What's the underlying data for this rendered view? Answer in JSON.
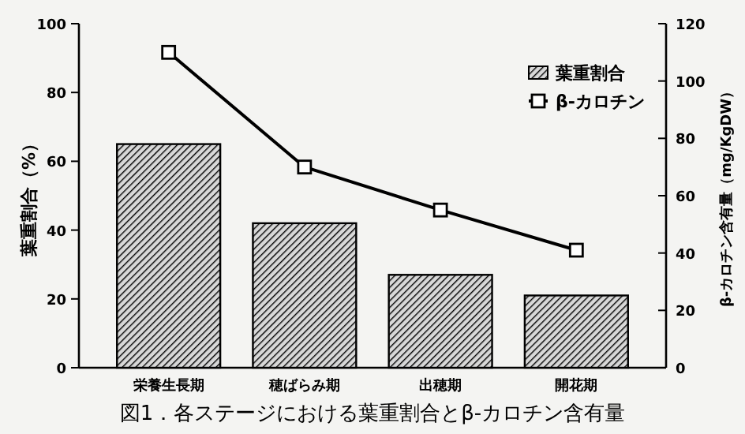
{
  "chart_data": {
    "type": "bar",
    "title": "図1．各ステージにおける葉重割合とβ-カロチン含有量",
    "ylabel": "葉重割合（%）",
    "y2label": "β-カロチン含有量（mg/KgDW）",
    "categories": [
      "栄養生長期",
      "穂ばらみ期",
      "出穂期",
      "開花期"
    ],
    "series": [
      {
        "name": "葉重割合",
        "color": "#000000",
        "values": [
          65,
          42,
          27,
          21
        ]
      },
      {
        "name": "β-カロチン",
        "type": "line",
        "axis": "y2",
        "color": "#000000",
        "marker": "square",
        "values": [
          110,
          70,
          55,
          41
        ]
      }
    ],
    "ylim": [
      0,
      100
    ],
    "yticks": [
      0,
      20,
      40,
      60,
      80,
      100
    ],
    "y2lim": [
      0,
      120
    ],
    "y2ticks": [
      0,
      20,
      40,
      60,
      80,
      100,
      120
    ],
    "legend": "top right"
  }
}
